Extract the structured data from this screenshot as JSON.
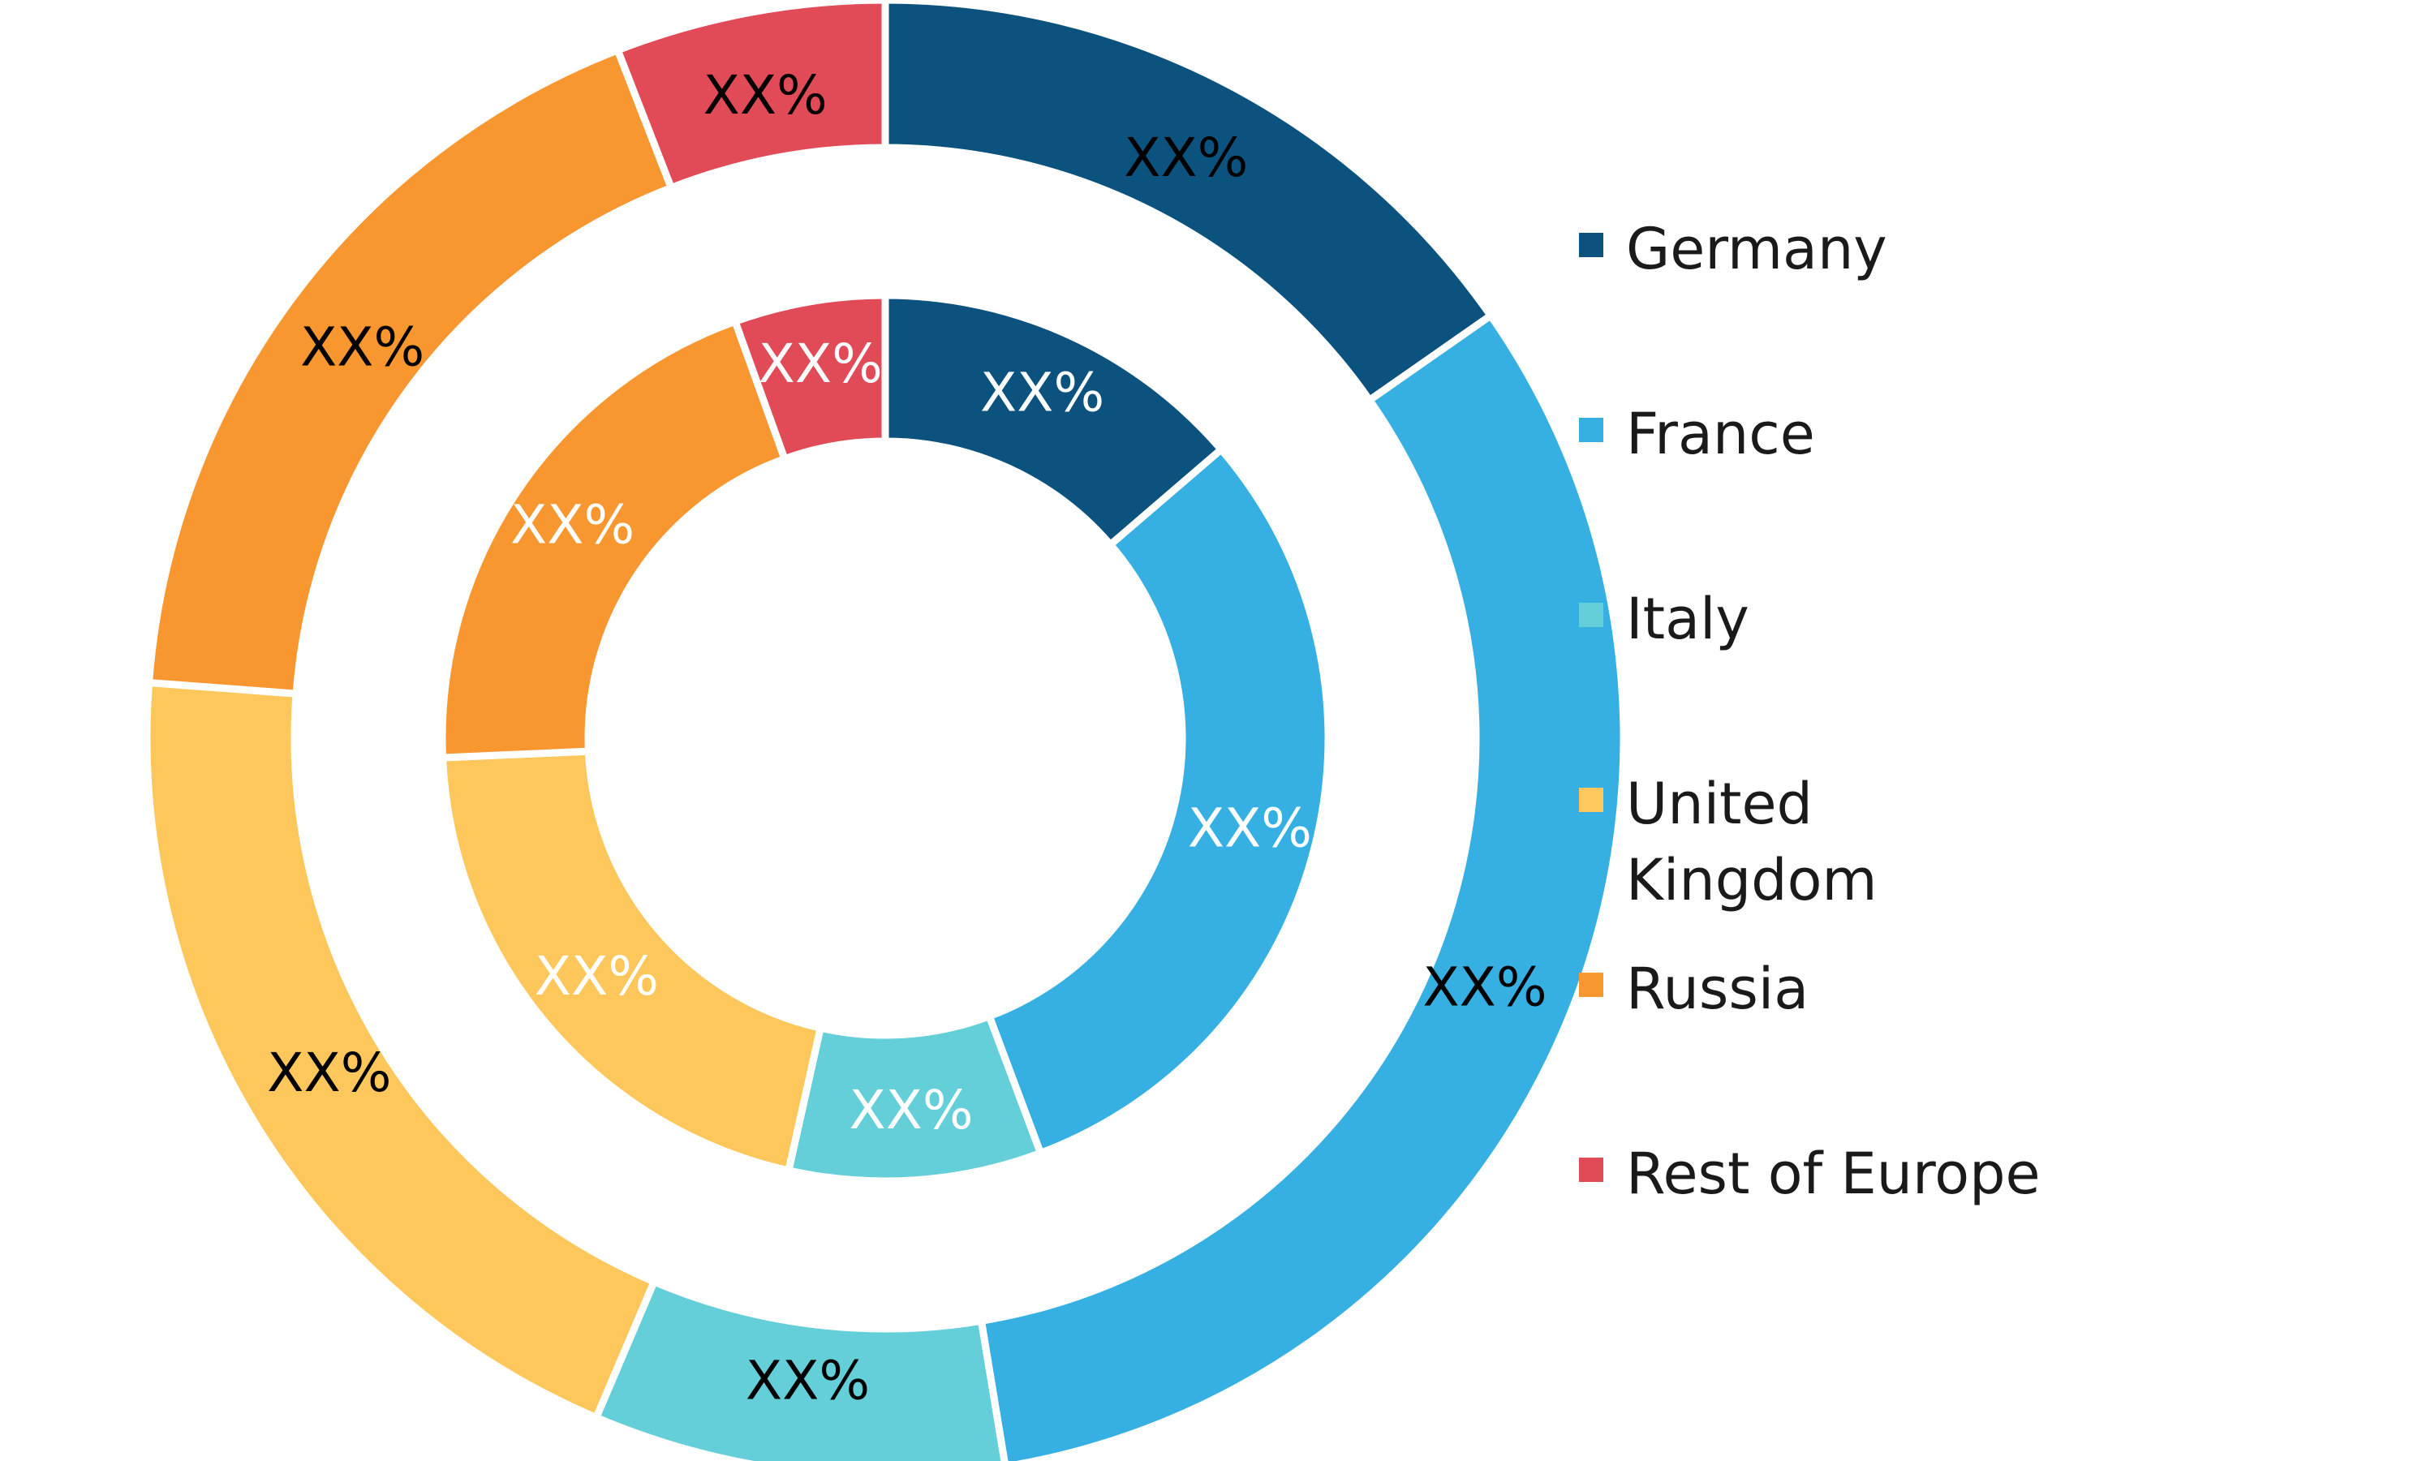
{
  "colors": {
    "germany": "#0b527f",
    "france": "#36b0e2",
    "italy": "#64ced9",
    "united_kingdom": "#fdc75b",
    "russia": "#f89630",
    "rest_of_europe": "#e14a57"
  },
  "legend": [
    {
      "label": "Germany",
      "color": "#0b527f"
    },
    {
      "label": "France",
      "color": "#36b0e2"
    },
    {
      "label": "Italy",
      "color": "#64ced9"
    },
    {
      "label": "United Kingdom",
      "color": "#fdc75b"
    },
    {
      "label": "Russia",
      "color": "#f89630"
    },
    {
      "label": "Rest of Europe",
      "color": "#e14a57"
    }
  ],
  "chart_data": {
    "type": "pie",
    "subtype": "nested-donut",
    "title": "",
    "legend_position": "right",
    "categories": [
      "Germany",
      "France",
      "Italy",
      "United Kingdom",
      "Russia",
      "Rest of Europe"
    ],
    "series": [
      {
        "ring": "outer",
        "values": [
          15.3,
          32.1,
          9.0,
          19.8,
          17.9,
          5.9
        ],
        "labels": [
          "XX%",
          "XX%",
          "XX%",
          "XX%",
          "XX%",
          "XX%"
        ],
        "label_color": "#000000"
      },
      {
        "ring": "inner",
        "values": [
          13.7,
          30.6,
          9.2,
          20.8,
          20.2,
          5.5
        ],
        "labels": [
          "XX%",
          "XX%",
          "XX%",
          "XX%",
          "XX%",
          "XX%"
        ],
        "label_color": "#ffffff"
      }
    ]
  }
}
